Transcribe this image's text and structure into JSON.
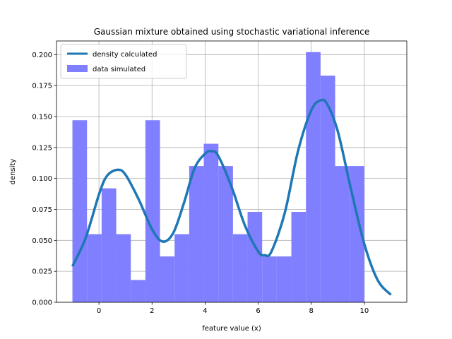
{
  "chart_data": {
    "type": "bar",
    "title": "Gaussian mixture obtained using stochastic variational inference",
    "xlabel": "feature value (x)",
    "ylabel": "density",
    "xlim": [
      -1.6,
      11.6
    ],
    "ylim": [
      0,
      0.211
    ],
    "x_ticks": [
      0,
      2,
      4,
      6,
      8,
      10
    ],
    "y_ticks": [
      0.0,
      0.025,
      0.05,
      0.075,
      0.1,
      0.125,
      0.15,
      0.175,
      0.2
    ],
    "y_tick_labels": [
      "0.000",
      "0.025",
      "0.050",
      "0.075",
      "0.100",
      "0.125",
      "0.150",
      "0.175",
      "0.200"
    ],
    "grid": true,
    "legend_position": "top-left",
    "histogram": {
      "name": "data simulated",
      "color": "#7f7fff",
      "bin_edges": [
        -1.0,
        -0.45,
        0.1,
        0.65,
        1.2,
        1.75,
        2.3,
        2.85,
        3.4,
        3.95,
        4.5,
        5.05,
        5.6,
        6.15,
        6.7,
        7.25,
        7.8,
        8.35,
        8.9,
        9.45,
        10.0
      ],
      "values": [
        0.147,
        0.055,
        0.092,
        0.055,
        0.018,
        0.147,
        0.037,
        0.055,
        0.11,
        0.128,
        0.11,
        0.055,
        0.073,
        0.037,
        0.037,
        0.073,
        0.202,
        0.183,
        0.11,
        0.11
      ]
    },
    "density": {
      "name": "density calculated",
      "color": "#1f77b4",
      "x": [
        -1.0,
        -0.5,
        0.0,
        0.3,
        0.7,
        1.0,
        1.5,
        2.0,
        2.4,
        2.8,
        3.2,
        3.6,
        4.0,
        4.25,
        4.5,
        5.0,
        5.5,
        6.0,
        6.25,
        6.5,
        7.0,
        7.5,
        8.0,
        8.35,
        8.6,
        9.0,
        9.5,
        10.0,
        10.5,
        11.0
      ],
      "y": [
        0.029,
        0.052,
        0.087,
        0.102,
        0.107,
        0.103,
        0.083,
        0.059,
        0.049,
        0.056,
        0.08,
        0.108,
        0.12,
        0.122,
        0.118,
        0.093,
        0.062,
        0.041,
        0.038,
        0.041,
        0.072,
        0.122,
        0.155,
        0.163,
        0.16,
        0.138,
        0.091,
        0.047,
        0.018,
        0.006
      ]
    }
  }
}
